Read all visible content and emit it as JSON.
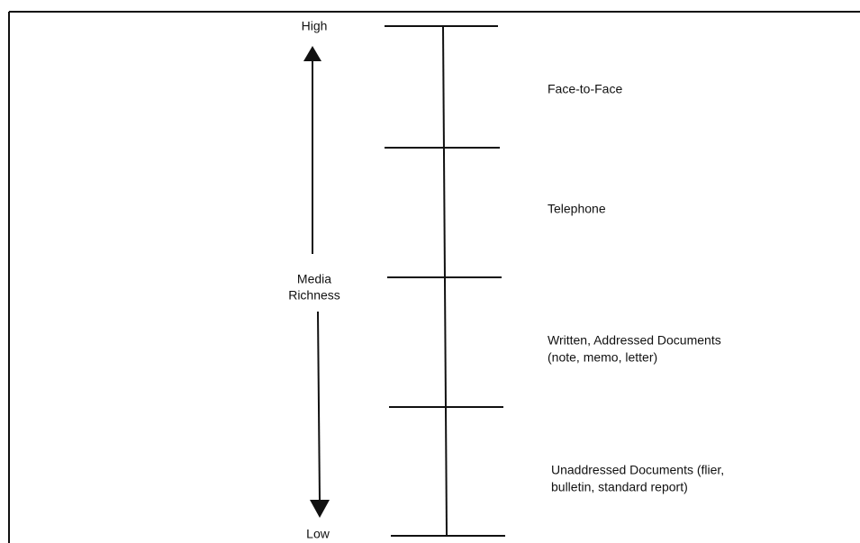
{
  "scale": {
    "high": "High",
    "low": "Low",
    "axis_label": [
      "Media",
      "Richness"
    ]
  },
  "levels": [
    {
      "lines": [
        "Face-to-Face"
      ]
    },
    {
      "lines": [
        "Telephone"
      ]
    },
    {
      "lines": [
        "Written, Addressed Documents",
        "(note, memo, letter)"
      ]
    },
    {
      "lines": [
        "Unaddressed Documents (flier,",
        "bulletin, standard report)"
      ]
    }
  ]
}
